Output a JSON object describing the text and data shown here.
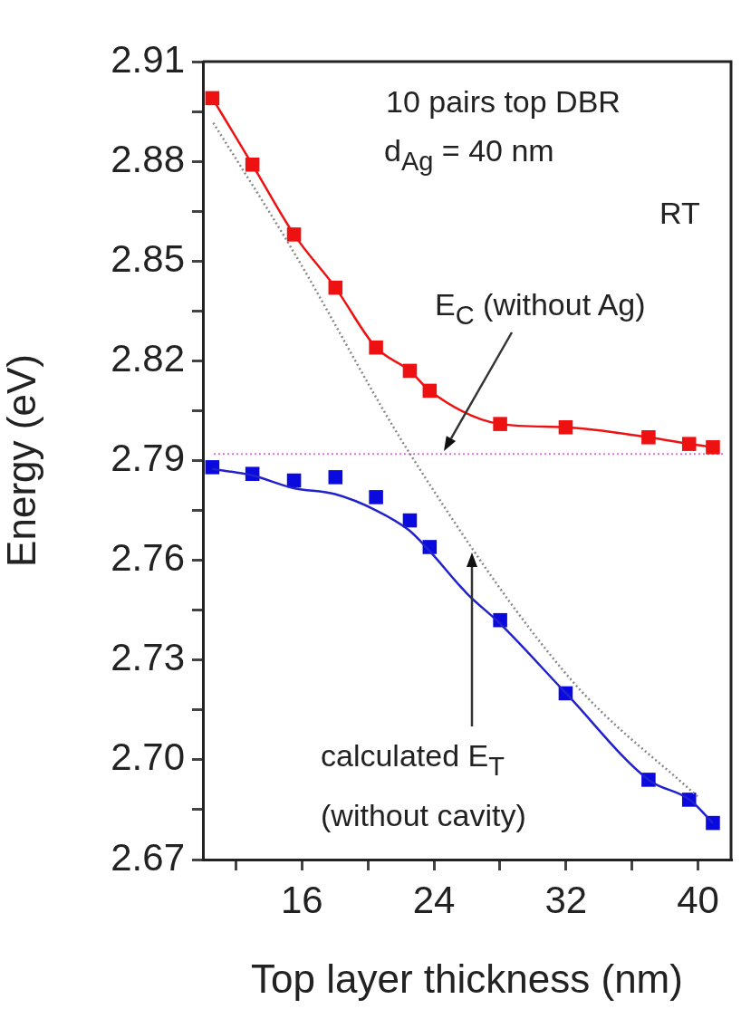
{
  "chart_data": {
    "type": "line",
    "xlabel": "Top layer thickness (nm)",
    "ylabel": "Energy (eV)",
    "xlim": [
      10,
      42
    ],
    "xticks": [
      {
        "value": 12,
        "label": null
      },
      16,
      {
        "value": 20,
        "label": null
      },
      24,
      {
        "value": 28,
        "label": null
      },
      32,
      {
        "value": 36,
        "label": null
      },
      40
    ],
    "ylim": [
      2.67,
      2.91
    ],
    "yticks": [
      {
        "value": 2.67,
        "label": "2.67"
      },
      {
        "value": 2.685,
        "label": null
      },
      {
        "value": 2.7,
        "label": "2.70"
      },
      {
        "value": 2.715,
        "label": null
      },
      {
        "value": 2.73,
        "label": "2.73"
      },
      {
        "value": 2.745,
        "label": null
      },
      {
        "value": 2.76,
        "label": "2.76"
      },
      {
        "value": 2.775,
        "label": null
      },
      {
        "value": 2.79,
        "label": "2.79"
      },
      {
        "value": 2.805,
        "label": null
      },
      {
        "value": 2.82,
        "label": "2.82"
      },
      {
        "value": 2.835,
        "label": null
      },
      {
        "value": 2.85,
        "label": "2.85"
      },
      {
        "value": 2.865,
        "label": null
      },
      {
        "value": 2.88,
        "label": "2.88"
      },
      {
        "value": 2.895,
        "label": null
      },
      {
        "value": 2.91,
        "label": "2.91"
      }
    ],
    "grid": false,
    "legend": false,
    "series": [
      {
        "color": "#ee1111",
        "marker": "square",
        "line_style": "solid",
        "x": [
          10.57,
          13.0,
          15.52,
          18.03,
          20.49,
          22.54,
          23.74,
          28.01,
          31.98,
          37.0,
          39.46,
          40.9
        ],
        "values": [
          2.899,
          2.879,
          2.858,
          2.842,
          2.824,
          2.817,
          2.811,
          2.801,
          2.8,
          2.797,
          2.795,
          2.794
        ]
      },
      {
        "type": "scatter",
        "color": "#0a0adf",
        "marker": "square",
        "x": [
          10.57,
          13.0,
          15.52,
          18.03,
          20.49,
          22.54,
          23.74,
          28.01,
          31.98,
          37.0,
          39.46,
          40.9
        ],
        "values": [
          2.788,
          2.786,
          2.784,
          2.785,
          2.779,
          2.772,
          2.764,
          2.742,
          2.72,
          2.694,
          2.688,
          2.681
        ]
      },
      {
        "type": "line",
        "color": "#2222cc",
        "marker": "none",
        "line_style": "solid",
        "x": [
          10.57,
          13.0,
          15.5,
          18.0,
          20.5,
          22.5,
          23.7,
          26.0,
          28.0,
          32.0,
          37.0,
          39.5,
          40.9
        ],
        "values": [
          2.7875,
          2.7855,
          2.7817,
          2.7799,
          2.775,
          2.769,
          2.763,
          2.75,
          2.741,
          2.72,
          2.694,
          2.688,
          2.681
        ]
      },
      {
        "type": "line",
        "color": "#888888",
        "marker": "none",
        "line_style": "dotted",
        "x": [
          10.63,
          15.42,
          22.5,
          32.2,
          40.0
        ],
        "values": [
          2.8916,
          2.8534,
          2.7924,
          2.7247,
          2.6888
        ]
      }
    ],
    "ref_lines": [
      {
        "axis": "y",
        "value": 2.792,
        "color": "#e070e0",
        "line_style": "dotted"
      }
    ],
    "annotations": [
      "10 pairs top DBR",
      "d$_{Ag}$ = 40 nm",
      "RT",
      "E$_{C}$ (without Ag)",
      "calculated E$_{T}$\n(without cavity)"
    ]
  }
}
